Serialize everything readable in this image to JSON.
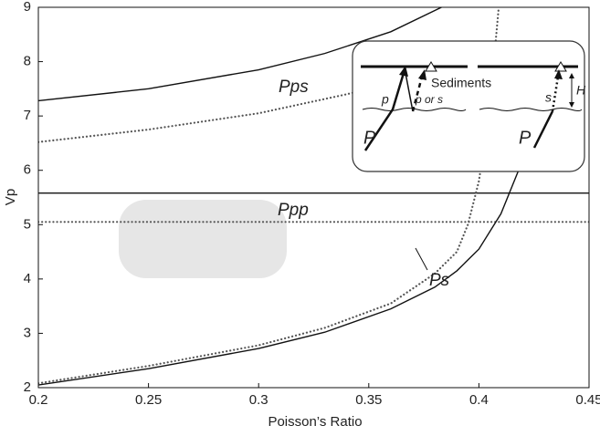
{
  "chart_data": {
    "type": "line",
    "xlabel": "Poisson’s Ratio",
    "ylabel": "Vp",
    "xlim": [
      0.2,
      0.45
    ],
    "xticks": [
      0.2,
      0.25,
      0.3,
      0.35,
      0.4,
      0.45
    ],
    "ylim": [
      2,
      9
    ],
    "yticks": [
      2,
      3,
      4,
      5,
      6,
      7,
      8,
      9
    ],
    "grid": false,
    "series": [
      {
        "style": "solid",
        "color": "#111111",
        "x": [
          0.2,
          0.25,
          0.3,
          0.33,
          0.36,
          0.383
        ],
        "values": [
          7.28,
          7.5,
          7.85,
          8.15,
          8.55,
          9
        ]
      },
      {
        "style": "dotted",
        "color": "#555555",
        "x": [
          0.2,
          0.25,
          0.3,
          0.34,
          0.37
        ],
        "values": [
          6.52,
          6.75,
          7.05,
          7.4,
          7.7
        ]
      },
      {
        "style": "solid",
        "color": "#111111",
        "x": [
          0.2,
          0.45
        ],
        "values": [
          5.58,
          5.58
        ]
      },
      {
        "style": "dotted",
        "color": "#555555",
        "x": [
          0.2,
          0.45
        ],
        "values": [
          5.05,
          5.05
        ]
      },
      {
        "style": "solid",
        "color": "#111111",
        "x": [
          0.2,
          0.25,
          0.3,
          0.33,
          0.36,
          0.38,
          0.39,
          0.4,
          0.41,
          0.418,
          0.425
        ],
        "values": [
          2.05,
          2.35,
          2.72,
          3.02,
          3.45,
          3.85,
          4.15,
          4.55,
          5.2,
          6.0,
          6.9
        ]
      },
      {
        "style": "dotted",
        "color": "#555555",
        "x": [
          0.2,
          0.25,
          0.3,
          0.33,
          0.36,
          0.38,
          0.39,
          0.395,
          0.4,
          0.405,
          0.409
        ],
        "values": [
          2.08,
          2.4,
          2.78,
          3.1,
          3.55,
          4.1,
          4.5,
          5.0,
          5.8,
          7.2,
          9
        ]
      }
    ],
    "annotations": [
      "Pps",
      "Ppp",
      "Ps"
    ],
    "inset_labels": [
      "Sediments",
      "P",
      "p",
      "p or s",
      "P",
      "s",
      "H"
    ]
  }
}
